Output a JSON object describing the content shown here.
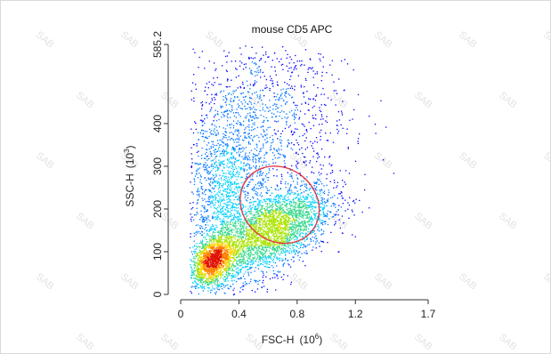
{
  "chart_data": {
    "type": "scatter",
    "title": "mouse CD5 APC",
    "xlabel": "FSC-H",
    "xlabel_unit_base": "(10",
    "xlabel_unit_exp": "6",
    "xlabel_unit_close": ")",
    "ylabel": "SSC-H",
    "ylabel_unit_base": "(10",
    "ylabel_unit_exp": "3",
    "ylabel_unit_close": ")",
    "xlim": [
      0,
      1.7
    ],
    "ylim": [
      0,
      585.2
    ],
    "x_ticks": [
      {
        "value": 0,
        "label": "0"
      },
      {
        "value": 0.4,
        "label": "0.4"
      },
      {
        "value": 0.8,
        "label": "0.8"
      },
      {
        "value": 1.2,
        "label": "1.2"
      },
      {
        "value": 1.7,
        "label": "1.7"
      }
    ],
    "y_ticks": [
      {
        "value": 0,
        "label": "0"
      },
      {
        "value": 100,
        "label": "100"
      },
      {
        "value": 200,
        "label": "200"
      },
      {
        "value": 300,
        "label": "300"
      },
      {
        "value": 400,
        "label": "400"
      },
      {
        "value": 585.2,
        "label": "585.2"
      }
    ],
    "grid": false,
    "density_colormap": [
      "#0000ff",
      "#0077ff",
      "#00d0ff",
      "#35d88a",
      "#a8e400",
      "#ffd400",
      "#ff8000",
      "#e01000"
    ],
    "populations": [
      {
        "x_mean": 0.63,
        "y_mean": 150,
        "x_sd": 0.2,
        "y_sd": 55,
        "corr": 0.55,
        "weight": 0.42
      },
      {
        "x_mean": 0.22,
        "y_mean": 80,
        "x_sd": 0.08,
        "y_sd": 30,
        "corr": 0.4,
        "weight": 0.22
      },
      {
        "x_mean": 0.3,
        "y_mean": 230,
        "x_sd": 0.14,
        "y_sd": 95,
        "corr": 0.1,
        "weight": 0.2
      },
      {
        "x_mean": 0.55,
        "y_mean": 420,
        "x_sd": 0.3,
        "y_sd": 100,
        "corr": 0.0,
        "weight": 0.16
      }
    ],
    "gate": {
      "type": "ellipse",
      "x_center": 0.68,
      "y_center": 210,
      "x_radius": 0.25,
      "y_radius": 157,
      "rotation_deg": -22,
      "color": "#e0394a"
    },
    "watermark_text": "SAB"
  }
}
